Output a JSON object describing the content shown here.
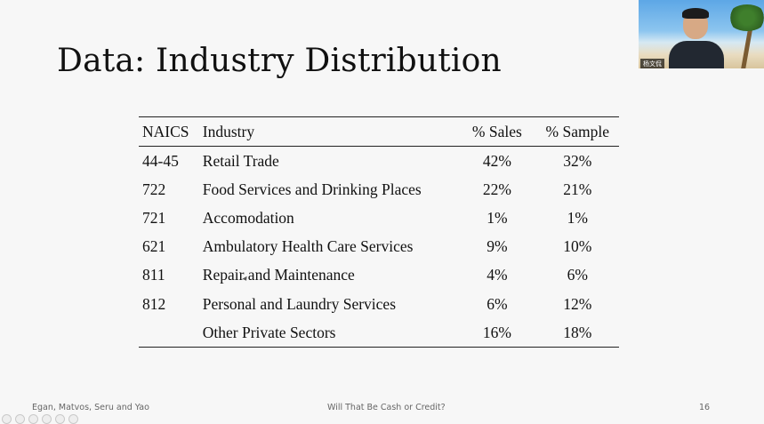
{
  "slide": {
    "title": "Data: Industry Distribution",
    "table": {
      "headers": {
        "naics": "NAICS",
        "industry": "Industry",
        "sales": "% Sales",
        "sample": "% Sample"
      },
      "rows": [
        {
          "naics": "44-45",
          "industry": "Retail Trade",
          "sales": "42%",
          "sample": "32%"
        },
        {
          "naics": "722",
          "industry": "Food Services and Drinking Places",
          "sales": "22%",
          "sample": "21%"
        },
        {
          "naics": "721",
          "industry": "Accomodation",
          "sales": "1%",
          "sample": "1%"
        },
        {
          "naics": "621",
          "industry": "Ambulatory Health Care Services",
          "sales": "9%",
          "sample": "10%"
        },
        {
          "naics": "811",
          "industry": "Repair and Maintenance",
          "sales": "4%",
          "sample": "6%"
        },
        {
          "naics": "812",
          "industry": "Personal and Laundry Services",
          "sales": "6%",
          "sample": "12%"
        },
        {
          "naics": "",
          "industry": "Other Private Sectors",
          "sales": "16%",
          "sample": "18%"
        }
      ]
    },
    "footer": {
      "authors": "Egan, Matvos, Seru and Yao",
      "paper_title": "Will That Be Cash or Credit?",
      "page_number": "16"
    }
  },
  "webcam": {
    "participant_name": "杨文侃"
  }
}
